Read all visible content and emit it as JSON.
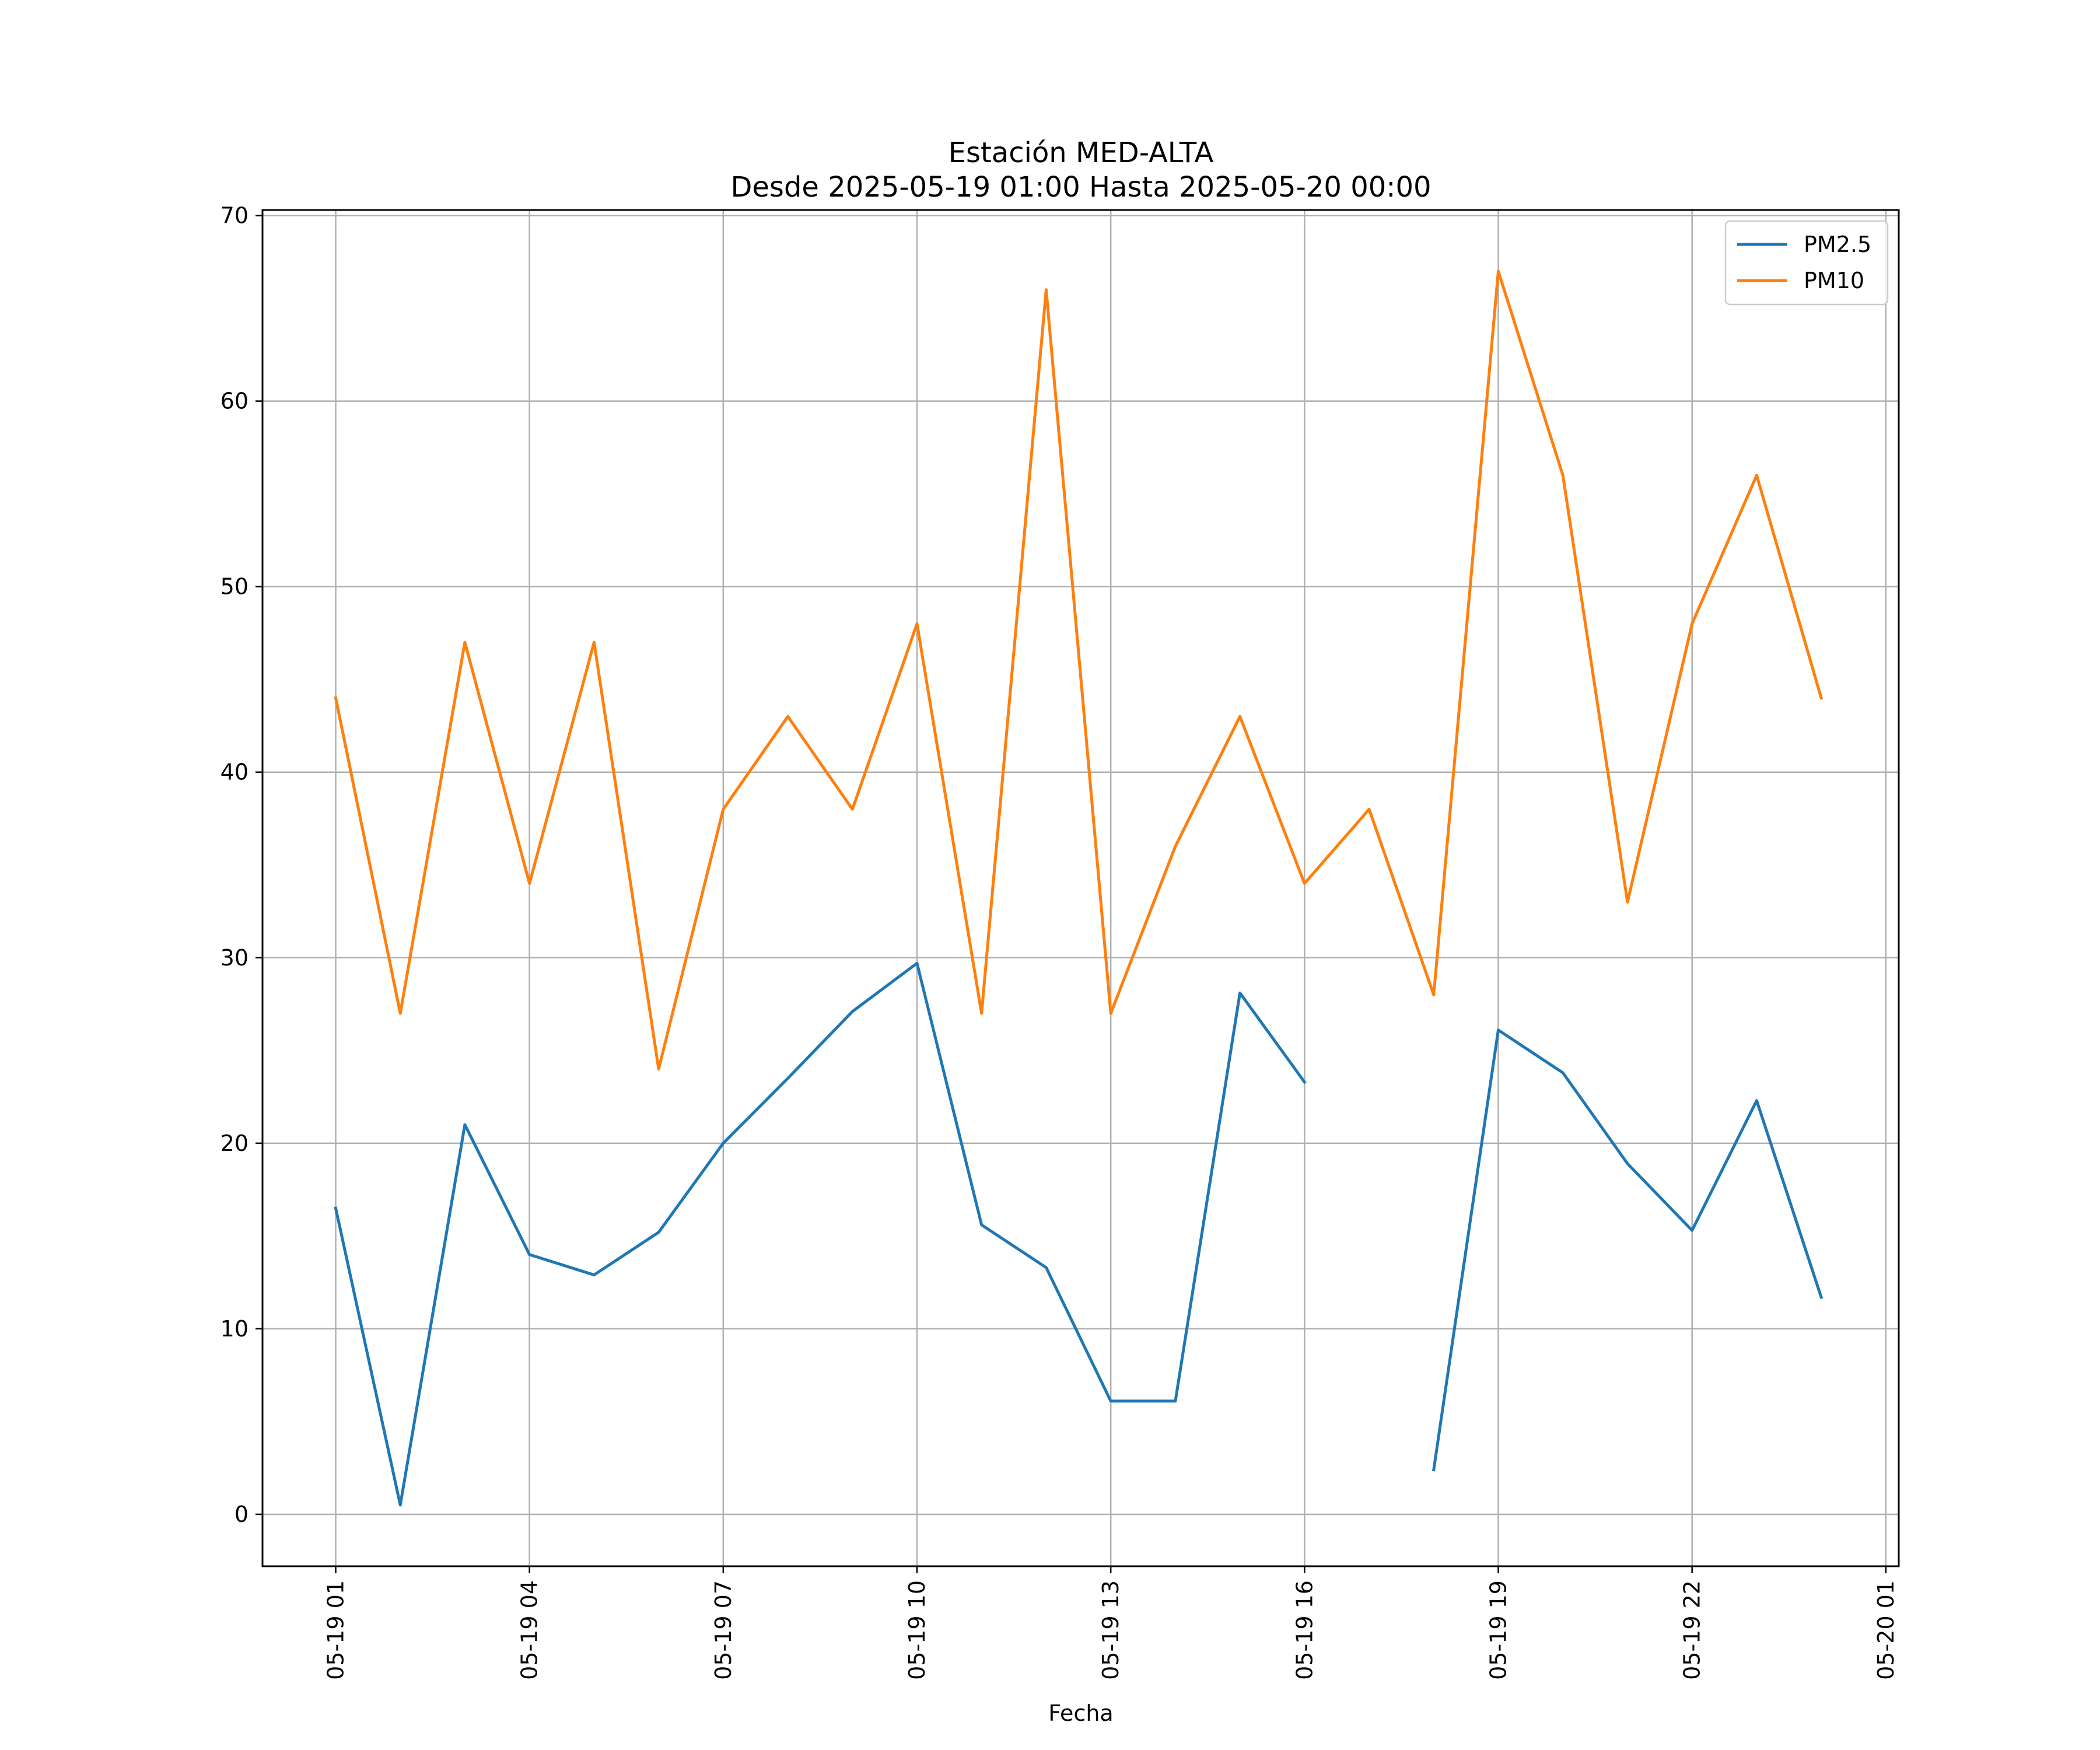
{
  "chart_data": {
    "type": "line",
    "title_line1": "Estación MED-ALTA",
    "title_line2": "Desde 2025-05-19 01:00 Hasta 2025-05-20 00:00",
    "xlabel": "Fecha",
    "ylabel": "",
    "x": [
      "2025-05-19 01:00",
      "2025-05-19 02:00",
      "2025-05-19 03:00",
      "2025-05-19 04:00",
      "2025-05-19 05:00",
      "2025-05-19 06:00",
      "2025-05-19 07:00",
      "2025-05-19 08:00",
      "2025-05-19 09:00",
      "2025-05-19 10:00",
      "2025-05-19 11:00",
      "2025-05-19 12:00",
      "2025-05-19 13:00",
      "2025-05-19 14:00",
      "2025-05-19 15:00",
      "2025-05-19 16:00",
      "2025-05-19 17:00",
      "2025-05-19 18:00",
      "2025-05-19 19:00",
      "2025-05-19 20:00",
      "2025-05-19 21:00",
      "2025-05-19 22:00",
      "2025-05-19 23:00",
      "2025-05-20 00:00"
    ],
    "series": [
      {
        "name": "PM2.5",
        "color": "#1f77b4",
        "values": [
          16.5,
          0.5,
          21.0,
          14.0,
          12.9,
          15.2,
          20.0,
          23.5,
          27.1,
          29.7,
          15.6,
          13.3,
          6.1,
          6.1,
          28.1,
          23.3,
          null,
          2.4,
          26.1,
          23.8,
          18.9,
          15.3,
          22.3,
          11.7
        ]
      },
      {
        "name": "PM10",
        "color": "#ff7f0e",
        "values": [
          44,
          27,
          47,
          34,
          47,
          24,
          38,
          43,
          38,
          48,
          27,
          66,
          27,
          36,
          43,
          34,
          38,
          28,
          67,
          56,
          33,
          48,
          56,
          44
        ]
      }
    ],
    "xticks": [
      {
        "value": "2025-05-19 01:00",
        "label": "05-19 01"
      },
      {
        "value": "2025-05-19 04:00",
        "label": "05-19 04"
      },
      {
        "value": "2025-05-19 07:00",
        "label": "05-19 07"
      },
      {
        "value": "2025-05-19 10:00",
        "label": "05-19 10"
      },
      {
        "value": "2025-05-19 13:00",
        "label": "05-19 13"
      },
      {
        "value": "2025-05-19 16:00",
        "label": "05-19 16"
      },
      {
        "value": "2025-05-19 19:00",
        "label": "05-19 19"
      },
      {
        "value": "2025-05-19 22:00",
        "label": "05-19 22"
      },
      {
        "value": "2025-05-20 01:00",
        "label": "05-20 01"
      }
    ],
    "yticks": [
      0,
      10,
      20,
      30,
      40,
      50,
      60,
      70
    ],
    "xlim": [
      "2025-05-18 23:52",
      "2025-05-20 01:12"
    ],
    "ylim": [
      -2.8,
      70.3
    ],
    "grid": true,
    "legend_position": "top-right"
  }
}
